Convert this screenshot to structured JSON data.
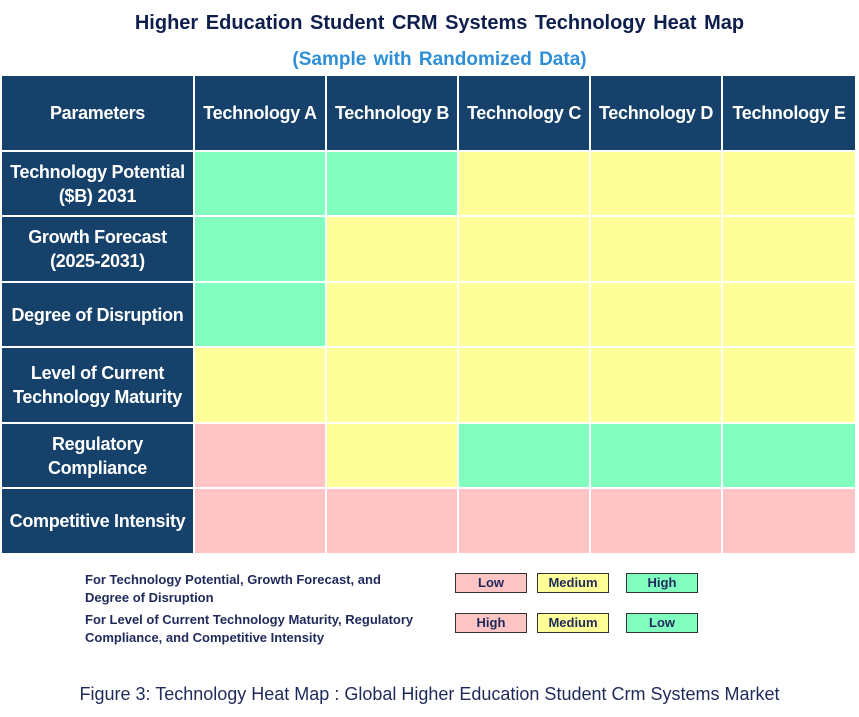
{
  "header": {
    "title": "Higher Education Student CRM Systems Technology Heat Map",
    "subtitle": "(Sample with Randomized Data)"
  },
  "table": {
    "columns": [
      "Parameters",
      "Technology A",
      "Technology B",
      "Technology C",
      "Technology D",
      "Technology E"
    ],
    "rows": [
      {
        "label": "Technology Potential ($B) 2031",
        "colors": [
          "#80ffbf",
          "#80ffbf",
          "#ffff99",
          "#ffff99",
          "#ffff99"
        ]
      },
      {
        "label": "Growth Forecast (2025-2031)",
        "colors": [
          "#80ffbf",
          "#ffff99",
          "#ffff99",
          "#ffff99",
          "#ffff99"
        ]
      },
      {
        "label": "Degree of Disruption",
        "colors": [
          "#80ffbf",
          "#ffff99",
          "#ffff99",
          "#ffff99",
          "#ffff99"
        ]
      },
      {
        "label": "Level of Current Technology Maturity",
        "colors": [
          "#ffff99",
          "#ffff99",
          "#ffff99",
          "#ffff99",
          "#ffff99"
        ]
      },
      {
        "label": "Regulatory Compliance",
        "colors": [
          "#ffc4c4",
          "#ffff99",
          "#80ffbf",
          "#80ffbf",
          "#80ffbf"
        ]
      },
      {
        "label": "Competitive Intensity",
        "colors": [
          "#ffc4c4",
          "#ffc4c4",
          "#ffc4c4",
          "#ffc4c4",
          "#ffc4c4"
        ]
      }
    ]
  },
  "legend": [
    {
      "text": "For Technology Potential, Growth Forecast, and Degree of Disruption",
      "items": [
        {
          "label": "Low",
          "color": "#ffc4c4"
        },
        {
          "label": "Medium",
          "color": "#ffff99"
        },
        {
          "label": "High",
          "color": "#80ffbf"
        }
      ]
    },
    {
      "text": "For Level of Current Technology Maturity, Regulatory Compliance, and Competitive Intensity",
      "items": [
        {
          "label": "High",
          "color": "#ffc4c4"
        },
        {
          "label": "Medium",
          "color": "#ffff99"
        },
        {
          "label": "Low",
          "color": "#80ffbf"
        }
      ]
    }
  ],
  "caption": "Figure 3: Technology Heat Map : Global Higher Education Student Crm Systems Market"
}
